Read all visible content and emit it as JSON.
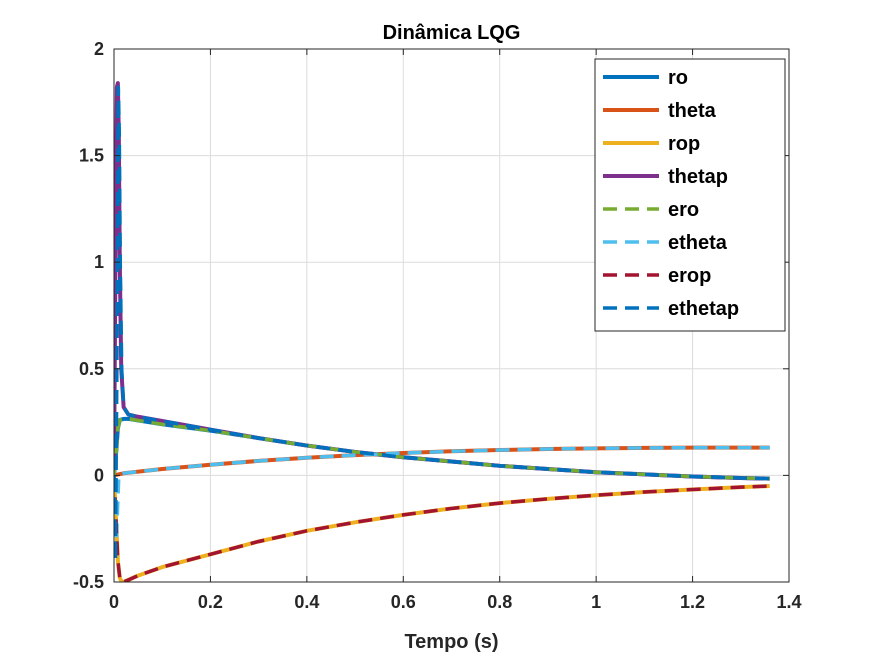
{
  "chart_data": {
    "type": "line",
    "title": "Dinâmica LQG",
    "xlabel": "Tempo (s)",
    "ylabel": "",
    "xlim": [
      0,
      1.4
    ],
    "ylim": [
      -0.5,
      2
    ],
    "xticks": [
      0,
      0.2,
      0.4,
      0.6,
      0.8,
      1,
      1.2,
      1.4
    ],
    "xtick_labels": [
      "0",
      "0.2",
      "0.4",
      "0.6",
      "0.8",
      "1",
      "1.2",
      "1.4"
    ],
    "yticks": [
      -0.5,
      0,
      0.5,
      1,
      1.5,
      2
    ],
    "ytick_labels": [
      "-0.5",
      "0",
      "0.5",
      "1",
      "1.5",
      "2"
    ],
    "grid": true,
    "legend_position": "top-right",
    "series": [
      {
        "name": "ro",
        "color": "#0072BD",
        "style": "solid",
        "x": [
          0,
          0.005,
          0.008,
          0.012,
          0.02,
          0.03,
          0.1,
          0.2,
          0.3,
          0.4,
          0.5,
          0.6,
          0.7,
          0.8,
          0.9,
          1.0,
          1.1,
          1.2,
          1.3,
          1.36
        ],
        "y": [
          0,
          0.12,
          0.22,
          0.26,
          0.265,
          0.265,
          0.24,
          0.21,
          0.175,
          0.14,
          0.11,
          0.085,
          0.065,
          0.045,
          0.03,
          0.015,
          0.005,
          -0.005,
          -0.012,
          -0.015
        ]
      },
      {
        "name": "theta",
        "color": "#D95319",
        "style": "solid",
        "x": [
          0,
          0.01,
          0.02,
          0.1,
          0.2,
          0.3,
          0.4,
          0.5,
          0.6,
          0.7,
          0.8,
          0.9,
          1.0,
          1.1,
          1.2,
          1.3,
          1.36
        ],
        "y": [
          0,
          0.005,
          0.01,
          0.03,
          0.05,
          0.068,
          0.083,
          0.095,
          0.105,
          0.113,
          0.119,
          0.124,
          0.127,
          0.129,
          0.13,
          0.13,
          0.13
        ]
      },
      {
        "name": "rop",
        "color": "#EDB120",
        "style": "solid",
        "x": [
          0,
          0.004,
          0.008,
          0.012,
          0.016,
          0.02,
          0.03,
          0.05,
          0.1,
          0.2,
          0.3,
          0.4,
          0.5,
          0.6,
          0.7,
          0.8,
          0.9,
          1.0,
          1.1,
          1.2,
          1.3,
          1.36
        ],
        "y": [
          0,
          -0.2,
          -0.4,
          -0.48,
          -0.5,
          -0.5,
          -0.49,
          -0.47,
          -0.43,
          -0.37,
          -0.31,
          -0.26,
          -0.22,
          -0.185,
          -0.155,
          -0.13,
          -0.11,
          -0.093,
          -0.078,
          -0.066,
          -0.055,
          -0.05
        ]
      },
      {
        "name": "thetap",
        "color": "#7E2F8E",
        "style": "solid",
        "x": [
          0,
          0.003,
          0.006,
          0.008,
          0.01,
          0.012,
          0.015,
          0.02,
          0.03,
          0.05,
          0.1,
          0.2,
          0.3,
          0.4,
          0.5,
          0.6,
          0.7,
          0.8,
          0.9,
          1.0,
          1.1,
          1.2,
          1.3,
          1.36
        ],
        "y": [
          0,
          1.0,
          1.82,
          1.84,
          1.6,
          1.0,
          0.5,
          0.32,
          0.285,
          0.275,
          0.255,
          0.215,
          0.175,
          0.14,
          0.11,
          0.085,
          0.065,
          0.045,
          0.03,
          0.015,
          0.005,
          -0.005,
          -0.012,
          -0.015
        ]
      },
      {
        "name": "ero",
        "color": "#77AC30",
        "style": "dashed",
        "x": [
          0,
          0.005,
          0.008,
          0.012,
          0.02,
          0.03,
          0.1,
          0.2,
          0.3,
          0.4,
          0.5,
          0.6,
          0.7,
          0.8,
          0.9,
          1.0,
          1.1,
          1.2,
          1.3,
          1.36
        ],
        "y": [
          0,
          0.12,
          0.22,
          0.26,
          0.265,
          0.265,
          0.24,
          0.21,
          0.175,
          0.14,
          0.11,
          0.085,
          0.065,
          0.045,
          0.03,
          0.015,
          0.005,
          -0.005,
          -0.012,
          -0.015
        ]
      },
      {
        "name": "etheta",
        "color": "#4DBEEE",
        "style": "dashed",
        "x": [
          0,
          0.005,
          0.01,
          0.02,
          0.1,
          0.2,
          0.3,
          0.4,
          0.5,
          0.6,
          0.7,
          0.8,
          0.9,
          1.0,
          1.1,
          1.2,
          1.3,
          1.36
        ],
        "y": [
          0,
          -0.3,
          0.0,
          0.01,
          0.03,
          0.05,
          0.068,
          0.083,
          0.095,
          0.105,
          0.113,
          0.119,
          0.124,
          0.127,
          0.129,
          0.13,
          0.13,
          0.13
        ]
      },
      {
        "name": "erop",
        "color": "#A2142F",
        "style": "dashed",
        "x": [
          0,
          0.004,
          0.008,
          0.012,
          0.016,
          0.02,
          0.03,
          0.05,
          0.1,
          0.2,
          0.3,
          0.4,
          0.5,
          0.6,
          0.7,
          0.8,
          0.9,
          1.0,
          1.1,
          1.2,
          1.3,
          1.36
        ],
        "y": [
          0,
          -0.2,
          -0.4,
          -0.48,
          -0.5,
          -0.5,
          -0.49,
          -0.47,
          -0.43,
          -0.37,
          -0.31,
          -0.26,
          -0.22,
          -0.185,
          -0.155,
          -0.13,
          -0.11,
          -0.093,
          -0.078,
          -0.066,
          -0.055,
          -0.05
        ]
      },
      {
        "name": "ethetap",
        "color": "#0072BD",
        "style": "dashed",
        "x": [
          0,
          0.003,
          0.006,
          0.009,
          0.011,
          0.013,
          0.016,
          0.02,
          0.03,
          0.05,
          0.1,
          0.2,
          0.3,
          0.4,
          0.5,
          0.6,
          0.7,
          0.8,
          0.9,
          1.0,
          1.1,
          1.2,
          1.3,
          1.36
        ],
        "y": [
          0,
          -0.4,
          0.5,
          1.82,
          1.6,
          1.0,
          0.5,
          0.32,
          0.285,
          0.275,
          0.255,
          0.215,
          0.175,
          0.14,
          0.11,
          0.085,
          0.065,
          0.045,
          0.03,
          0.015,
          0.005,
          -0.005,
          -0.012,
          -0.015
        ]
      }
    ]
  }
}
